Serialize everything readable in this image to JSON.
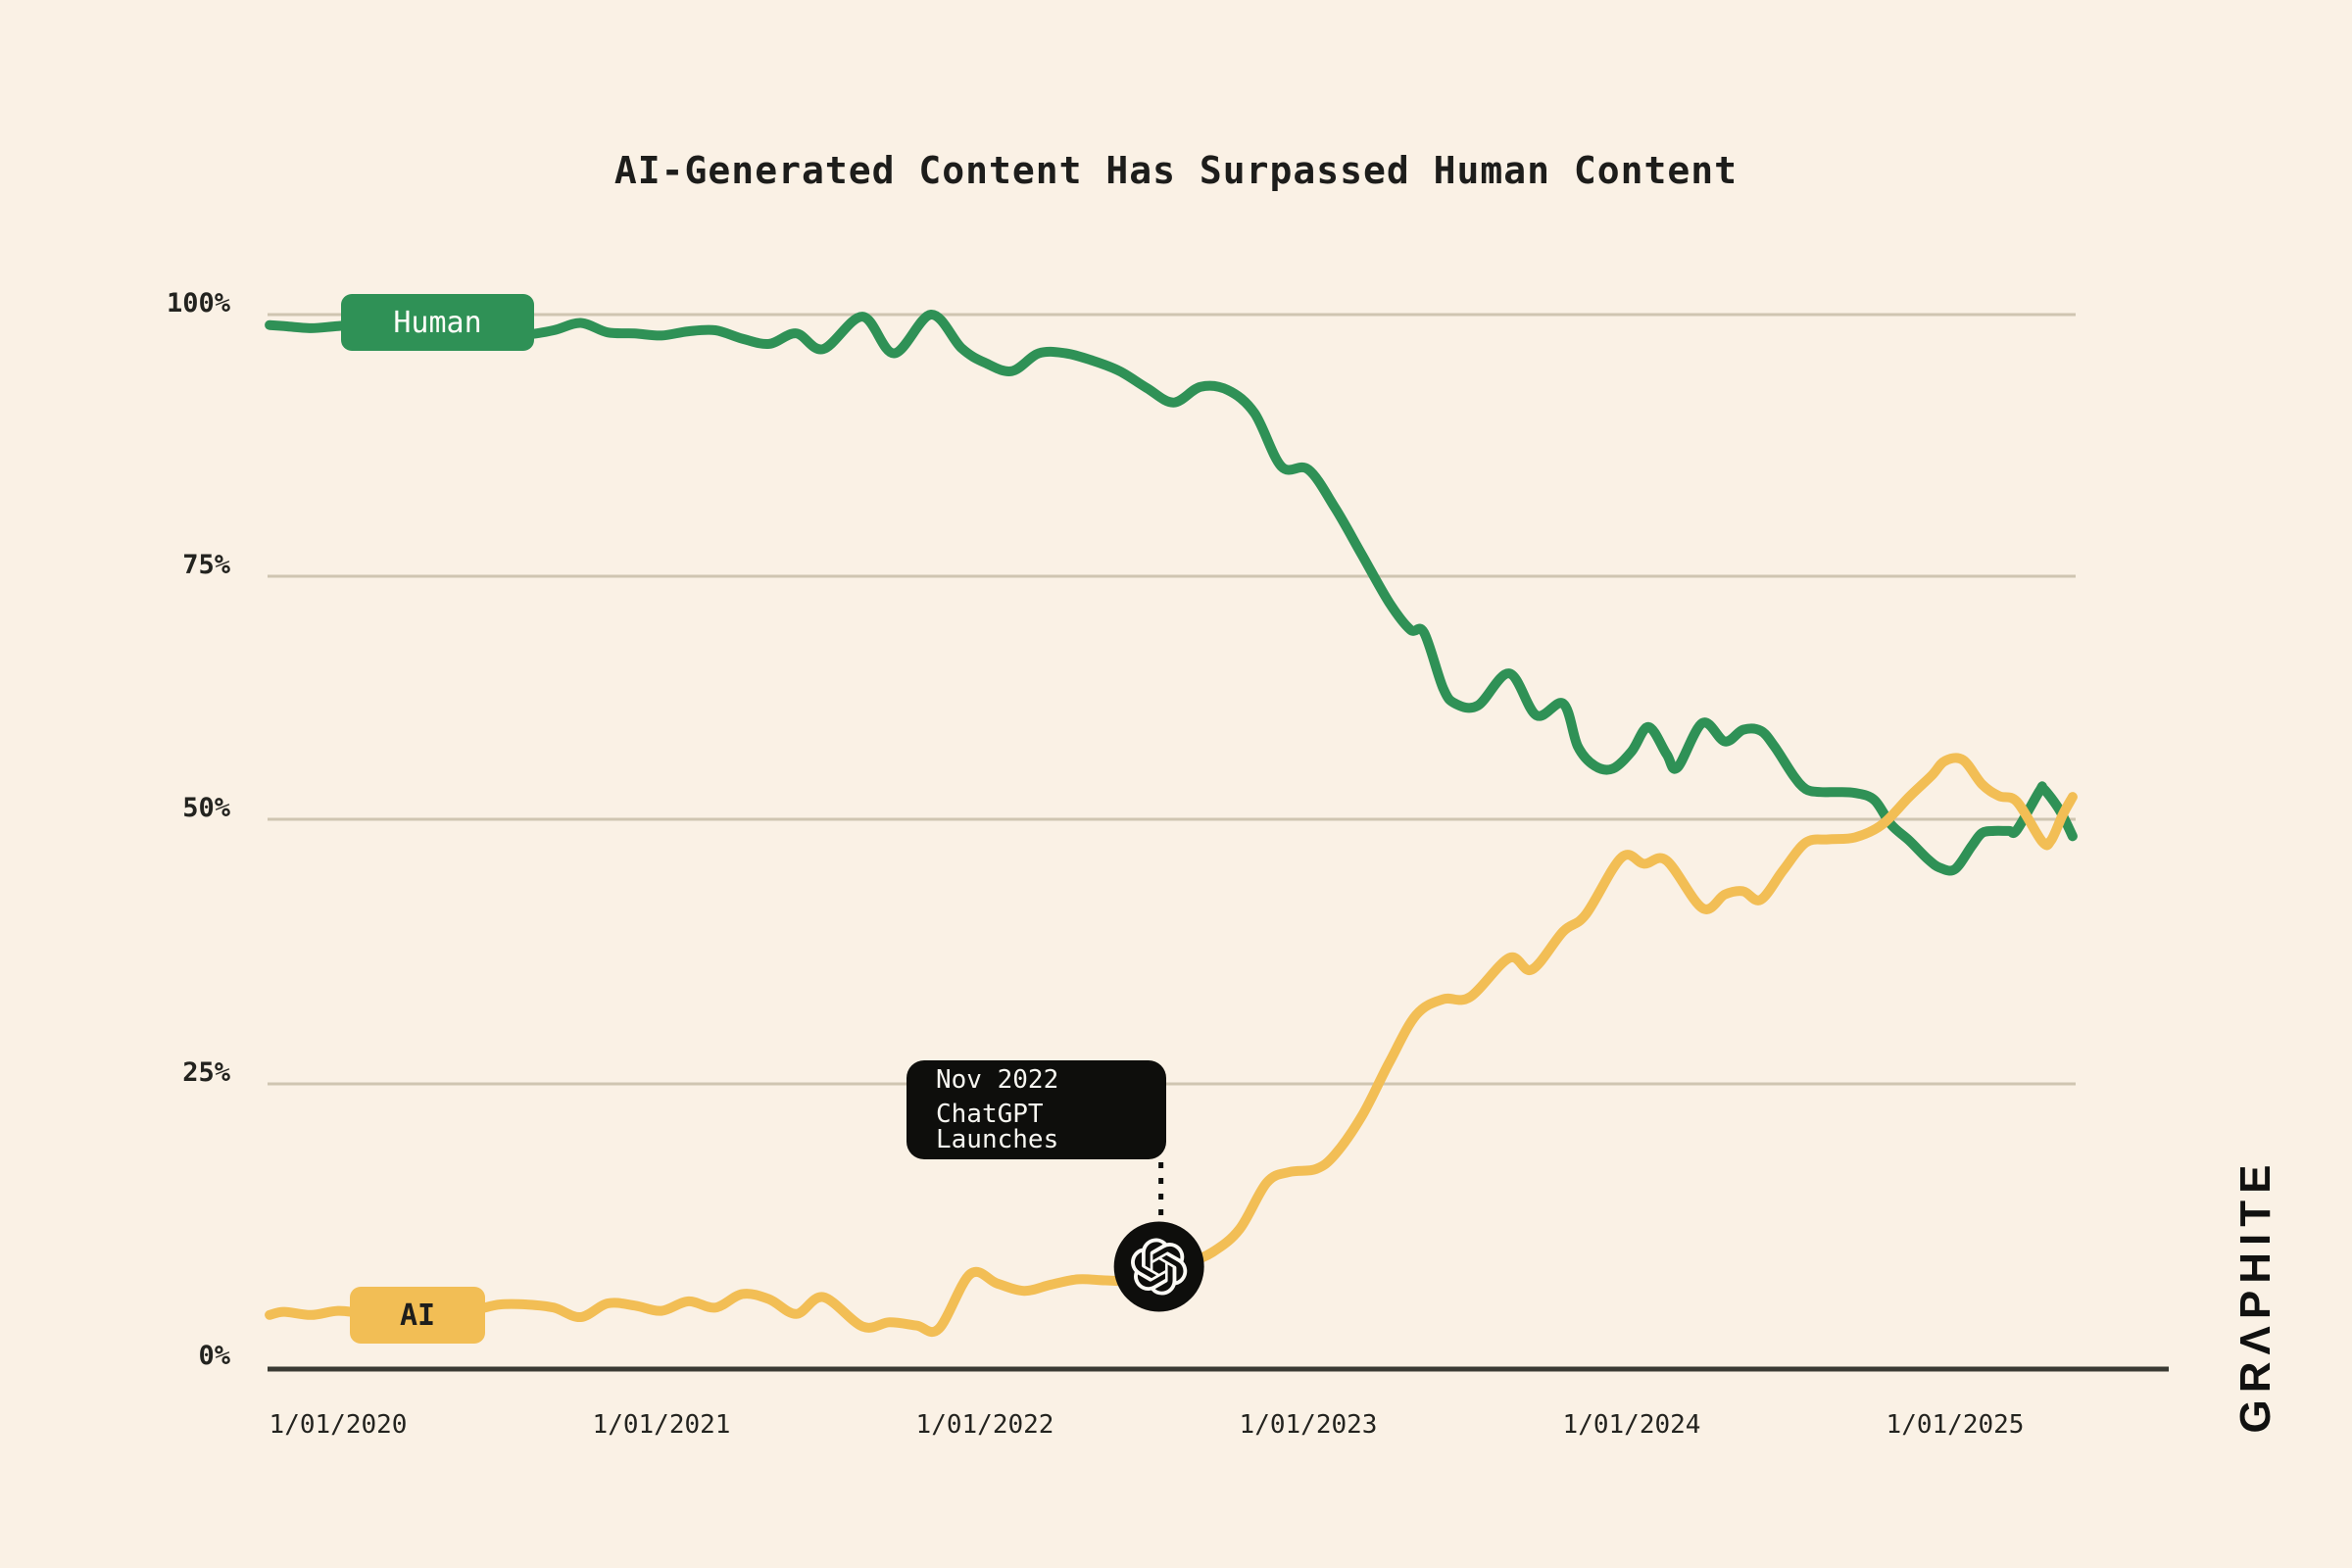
{
  "title": "AI-Generated Content Has Surpassed Human Content",
  "watermark": "GRΛPHITE",
  "colors": {
    "background": "#FAF1E5",
    "gridline": "#CFC5B1",
    "axis": "#3A3A33",
    "human": "#2F9156",
    "ai": "#F2BE55",
    "text": "#23231f",
    "annotation_bg": "#0E0E0C",
    "annotation_text": "#F7F6F1",
    "badge_human_text": "#FDFDF8",
    "badge_ai_text": "#1E1E1C"
  },
  "chart_data": {
    "type": "line",
    "title": "AI-Generated Content Has Surpassed Human Content",
    "xlabel": "",
    "ylabel": "",
    "ylim": [
      0,
      100
    ],
    "grid": "horizontal",
    "legend_position": "on-line badges",
    "y_ticks": [
      {
        "label": "100%",
        "value": 100
      },
      {
        "label": "75%",
        "value": 75
      },
      {
        "label": "50%",
        "value": 50
      },
      {
        "label": "25%",
        "value": 25
      },
      {
        "label": "0%",
        "value": 0
      }
    ],
    "x_ticks": [
      {
        "label": "1/01/2020",
        "date": "2020-01-01"
      },
      {
        "label": "1/01/2021",
        "date": "2021-01-01"
      },
      {
        "label": "1/01/2022",
        "date": "2022-01-01"
      },
      {
        "label": "1/01/2023",
        "date": "2023-01-01"
      },
      {
        "label": "1/01/2024",
        "date": "2024-01-01"
      },
      {
        "label": "1/01/2025",
        "date": "2025-01-01"
      }
    ],
    "annotation": {
      "line1": "Nov 2022",
      "line2": "ChatGPT Launches",
      "marker_icon": "openai-logo",
      "marker": {
        "x_date": "2022-07-15",
        "y_value": 7.6
      }
    },
    "series": [
      {
        "name": "Human",
        "color": "#2F9156",
        "points": [
          [
            "2019-10-15",
            99.0
          ],
          [
            "2019-11-01",
            98.9
          ],
          [
            "2019-12-01",
            98.7
          ],
          [
            "2020-01-01",
            98.9
          ],
          [
            "2020-02-01",
            99.0
          ],
          [
            "2020-03-01",
            98.6
          ],
          [
            "2020-04-01",
            98.7
          ],
          [
            "2020-05-01",
            98.4
          ],
          [
            "2020-06-01",
            98.6
          ],
          [
            "2020-07-01",
            98.2
          ],
          [
            "2020-08-01",
            98.1
          ],
          [
            "2020-09-01",
            98.5
          ],
          [
            "2020-10-01",
            99.2
          ],
          [
            "2020-11-01",
            98.3
          ],
          [
            "2020-12-01",
            98.2
          ],
          [
            "2021-01-01",
            98.0
          ],
          [
            "2021-02-01",
            98.4
          ],
          [
            "2021-03-01",
            98.5
          ],
          [
            "2021-04-01",
            97.7
          ],
          [
            "2021-05-01",
            97.2
          ],
          [
            "2021-06-01",
            98.2
          ],
          [
            "2021-07-01",
            96.7
          ],
          [
            "2021-08-15",
            99.8
          ],
          [
            "2021-09-20",
            96.3
          ],
          [
            "2021-11-01",
            100.0
          ],
          [
            "2021-12-05",
            96.8
          ],
          [
            "2022-01-01",
            95.4
          ],
          [
            "2022-02-01",
            94.6
          ],
          [
            "2022-03-01",
            96.3
          ],
          [
            "2022-04-01",
            96.3
          ],
          [
            "2022-05-01",
            95.6
          ],
          [
            "2022-06-01",
            94.6
          ],
          [
            "2022-07-01",
            93.0
          ],
          [
            "2022-08-01",
            91.6
          ],
          [
            "2022-09-01",
            93.1
          ],
          [
            "2022-10-01",
            92.8
          ],
          [
            "2022-11-01",
            90.6
          ],
          [
            "2022-12-01",
            85.5
          ],
          [
            "2023-01-01",
            85.2
          ],
          [
            "2023-02-01",
            81.5
          ],
          [
            "2023-03-01",
            77.0
          ],
          [
            "2023-04-01",
            72.3
          ],
          [
            "2023-04-25",
            69.5
          ],
          [
            "2023-05-10",
            69.2
          ],
          [
            "2023-06-01",
            63.5
          ],
          [
            "2023-06-15",
            61.9
          ],
          [
            "2023-07-10",
            61.7
          ],
          [
            "2023-08-15",
            65.0
          ],
          [
            "2023-09-15",
            60.7
          ],
          [
            "2023-10-15",
            61.9
          ],
          [
            "2023-11-01",
            57.5
          ],
          [
            "2023-11-20",
            55.5
          ],
          [
            "2023-12-10",
            55.2
          ],
          [
            "2024-01-01",
            57.0
          ],
          [
            "2024-01-20",
            59.5
          ],
          [
            "2024-02-10",
            56.7
          ],
          [
            "2024-02-22",
            55.3
          ],
          [
            "2024-03-20",
            59.9
          ],
          [
            "2024-04-15",
            58.0
          ],
          [
            "2024-05-05",
            59.2
          ],
          [
            "2024-05-25",
            59.1
          ],
          [
            "2024-06-10",
            57.5
          ],
          [
            "2024-07-01",
            54.5
          ],
          [
            "2024-07-15",
            53.1
          ],
          [
            "2024-08-01",
            52.8
          ],
          [
            "2024-08-20",
            52.8
          ],
          [
            "2024-09-10",
            52.7
          ],
          [
            "2024-10-01",
            52.0
          ],
          [
            "2024-10-20",
            49.5
          ],
          [
            "2024-11-10",
            48.0
          ],
          [
            "2024-12-01",
            46.2
          ],
          [
            "2024-12-15",
            45.4
          ],
          [
            "2025-01-01",
            45.3
          ],
          [
            "2025-01-20",
            47.5
          ],
          [
            "2025-02-01",
            48.7
          ],
          [
            "2025-02-15",
            48.9
          ],
          [
            "2025-03-01",
            48.9
          ],
          [
            "2025-03-10",
            49.0
          ],
          [
            "2025-04-05",
            52.9
          ],
          [
            "2025-04-10",
            53.1
          ],
          [
            "2025-04-28",
            50.9
          ],
          [
            "2025-05-12",
            48.4
          ]
        ]
      },
      {
        "name": "AI",
        "color": "#F2BE55",
        "points": [
          [
            "2019-10-15",
            3.0
          ],
          [
            "2019-11-01",
            3.3
          ],
          [
            "2019-12-01",
            3.0
          ],
          [
            "2020-01-01",
            3.4
          ],
          [
            "2020-02-01",
            3.2
          ],
          [
            "2020-03-01",
            3.6
          ],
          [
            "2020-04-01",
            3.4
          ],
          [
            "2020-05-01",
            3.7
          ],
          [
            "2020-06-01",
            3.5
          ],
          [
            "2020-07-01",
            4.0
          ],
          [
            "2020-08-01",
            4.0
          ],
          [
            "2020-09-01",
            3.7
          ],
          [
            "2020-10-01",
            2.8
          ],
          [
            "2020-11-01",
            4.1
          ],
          [
            "2020-12-01",
            3.9
          ],
          [
            "2021-01-01",
            3.4
          ],
          [
            "2021-02-01",
            4.3
          ],
          [
            "2021-03-01",
            3.7
          ],
          [
            "2021-04-01",
            5.0
          ],
          [
            "2021-05-01",
            4.5
          ],
          [
            "2021-06-01",
            3.1
          ],
          [
            "2021-07-01",
            4.7
          ],
          [
            "2021-08-15",
            1.9
          ],
          [
            "2021-09-15",
            2.3
          ],
          [
            "2021-10-15",
            2.0
          ],
          [
            "2021-11-10",
            1.7
          ],
          [
            "2021-12-15",
            6.9
          ],
          [
            "2022-01-15",
            6.0
          ],
          [
            "2022-02-15",
            5.3
          ],
          [
            "2022-03-15",
            5.9
          ],
          [
            "2022-04-15",
            6.4
          ],
          [
            "2022-05-15",
            6.3
          ],
          [
            "2022-06-15",
            6.3
          ],
          [
            "2022-07-15",
            7.2
          ],
          [
            "2022-08-15",
            7.9
          ],
          [
            "2022-09-15",
            9.0
          ],
          [
            "2022-10-15",
            11.2
          ],
          [
            "2022-11-15",
            15.6
          ],
          [
            "2022-12-10",
            16.6
          ],
          [
            "2023-01-10",
            16.9
          ],
          [
            "2023-02-01",
            18.3
          ],
          [
            "2023-03-01",
            22.0
          ],
          [
            "2023-04-01",
            27.0
          ],
          [
            "2023-05-01",
            31.5
          ],
          [
            "2023-06-01",
            33.0
          ],
          [
            "2023-07-01",
            33.2
          ],
          [
            "2023-08-15",
            36.9
          ],
          [
            "2023-09-10",
            35.8
          ],
          [
            "2023-10-15",
            39.4
          ],
          [
            "2023-11-10",
            41.0
          ],
          [
            "2023-12-20",
            46.4
          ],
          [
            "2024-01-15",
            45.8
          ],
          [
            "2024-02-10",
            46.1
          ],
          [
            "2024-03-20",
            41.6
          ],
          [
            "2024-04-15",
            42.9
          ],
          [
            "2024-05-05",
            43.2
          ],
          [
            "2024-05-25",
            42.4
          ],
          [
            "2024-06-20",
            45.2
          ],
          [
            "2024-07-15",
            47.8
          ],
          [
            "2024-08-10",
            48.1
          ],
          [
            "2024-09-10",
            48.3
          ],
          [
            "2024-10-10",
            49.5
          ],
          [
            "2024-11-10",
            52.3
          ],
          [
            "2024-12-05",
            54.5
          ],
          [
            "2024-12-20",
            56.0
          ],
          [
            "2025-01-10",
            56.1
          ],
          [
            "2025-02-01",
            53.6
          ],
          [
            "2025-02-20",
            52.4
          ],
          [
            "2025-03-10",
            51.8
          ],
          [
            "2025-04-08",
            47.9
          ],
          [
            "2025-04-18",
            48.0
          ],
          [
            "2025-05-01",
            50.5
          ],
          [
            "2025-05-12",
            52.3
          ]
        ]
      }
    ]
  }
}
